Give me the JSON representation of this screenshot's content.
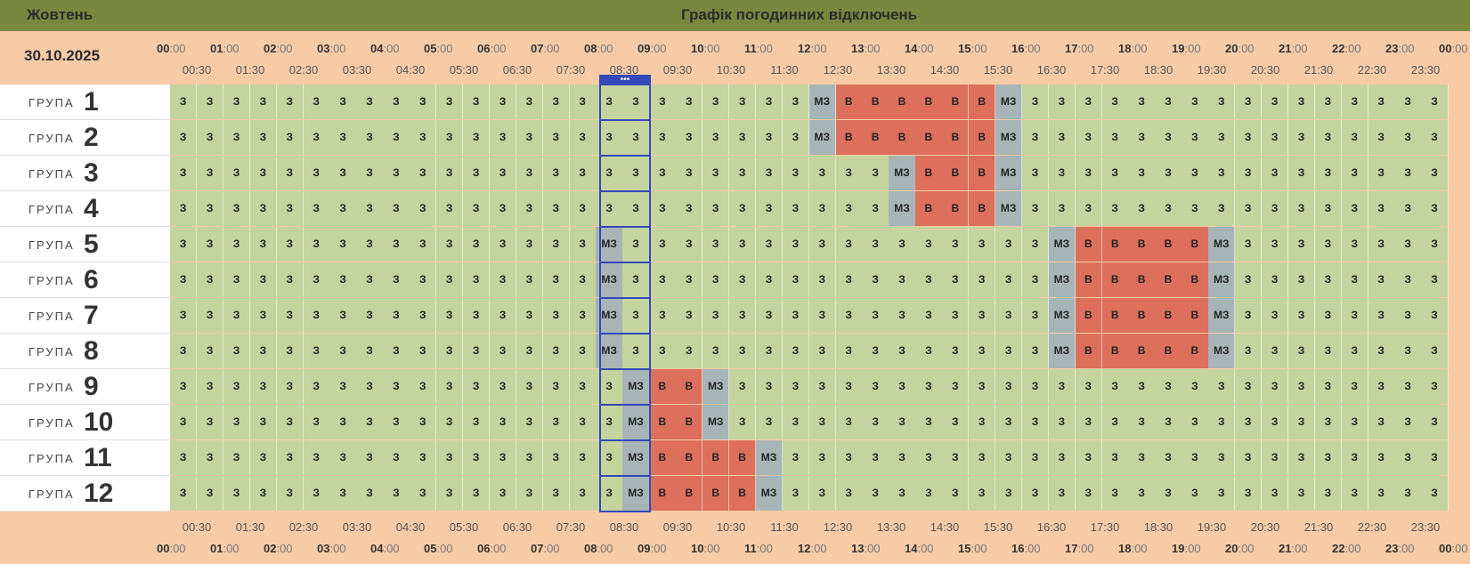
{
  "header": {
    "month": "Жовтень",
    "title": "Графік погодинних відключень"
  },
  "date": "30.10.2025",
  "group_label": "ГРУПА",
  "hours": [
    "00",
    "01",
    "02",
    "03",
    "04",
    "05",
    "06",
    "07",
    "08",
    "09",
    "10",
    "11",
    "12",
    "13",
    "14",
    "15",
    "16",
    "17",
    "18",
    "19",
    "20",
    "21",
    "22",
    "23",
    "00"
  ],
  "minute_suffix": ":00",
  "half_hours": [
    "00:30",
    "01:30",
    "02:30",
    "03:30",
    "04:30",
    "05:30",
    "06:30",
    "07:30",
    "08:30",
    "09:30",
    "10:30",
    "11:30",
    "12:30",
    "13:30",
    "14:30",
    "15:30",
    "16:30",
    "17:30",
    "18:30",
    "19:30",
    "20:30",
    "21:30",
    "22:30",
    "23:30"
  ],
  "now_indicator": "•••",
  "legend_codes": {
    "on": "З",
    "off": "В",
    "maybe": "МЗ"
  },
  "colors": {
    "on": "#c5d49e",
    "off": "#dd6f5d",
    "maybe": "#a8b5b6",
    "header": "#7a873f",
    "background": "#f6cba6",
    "now": "#3548b8"
  },
  "groups": [
    {
      "number": "1",
      "cells": [
        "З",
        "З",
        "З",
        "З",
        "З",
        "З",
        "З",
        "З",
        "З",
        "З",
        "З",
        "З",
        "З",
        "З",
        "З",
        "З",
        "З",
        "З",
        "З",
        "З",
        "З",
        "З",
        "З",
        "З",
        "МЗ",
        "В",
        "В",
        "В",
        "В",
        "В",
        "В",
        "МЗ",
        "З",
        "З",
        "З",
        "З",
        "З",
        "З",
        "З",
        "З",
        "З",
        "З",
        "З",
        "З",
        "З",
        "З",
        "З",
        "З"
      ]
    },
    {
      "number": "2",
      "cells": [
        "З",
        "З",
        "З",
        "З",
        "З",
        "З",
        "З",
        "З",
        "З",
        "З",
        "З",
        "З",
        "З",
        "З",
        "З",
        "З",
        "З",
        "З",
        "З",
        "З",
        "З",
        "З",
        "З",
        "З",
        "МЗ",
        "В",
        "В",
        "В",
        "В",
        "В",
        "В",
        "МЗ",
        "З",
        "З",
        "З",
        "З",
        "З",
        "З",
        "З",
        "З",
        "З",
        "З",
        "З",
        "З",
        "З",
        "З",
        "З",
        "З"
      ]
    },
    {
      "number": "3",
      "cells": [
        "З",
        "З",
        "З",
        "З",
        "З",
        "З",
        "З",
        "З",
        "З",
        "З",
        "З",
        "З",
        "З",
        "З",
        "З",
        "З",
        "З",
        "З",
        "З",
        "З",
        "З",
        "З",
        "З",
        "З",
        "З",
        "З",
        "З",
        "МЗ",
        "В",
        "В",
        "В",
        "МЗ",
        "З",
        "З",
        "З",
        "З",
        "З",
        "З",
        "З",
        "З",
        "З",
        "З",
        "З",
        "З",
        "З",
        "З",
        "З",
        "З"
      ]
    },
    {
      "number": "4",
      "cells": [
        "З",
        "З",
        "З",
        "З",
        "З",
        "З",
        "З",
        "З",
        "З",
        "З",
        "З",
        "З",
        "З",
        "З",
        "З",
        "З",
        "З",
        "З",
        "З",
        "З",
        "З",
        "З",
        "З",
        "З",
        "З",
        "З",
        "З",
        "МЗ",
        "В",
        "В",
        "В",
        "МЗ",
        "З",
        "З",
        "З",
        "З",
        "З",
        "З",
        "З",
        "З",
        "З",
        "З",
        "З",
        "З",
        "З",
        "З",
        "З",
        "З"
      ]
    },
    {
      "number": "5",
      "cells": [
        "З",
        "З",
        "З",
        "З",
        "З",
        "З",
        "З",
        "З",
        "З",
        "З",
        "З",
        "З",
        "З",
        "З",
        "З",
        "З",
        "МЗ",
        "З",
        "З",
        "З",
        "З",
        "З",
        "З",
        "З",
        "З",
        "З",
        "З",
        "З",
        "З",
        "З",
        "З",
        "З",
        "З",
        "МЗ",
        "В",
        "В",
        "В",
        "В",
        "В",
        "МЗ",
        "З",
        "З",
        "З",
        "З",
        "З",
        "З",
        "З",
        "З"
      ]
    },
    {
      "number": "6",
      "cells": [
        "З",
        "З",
        "З",
        "З",
        "З",
        "З",
        "З",
        "З",
        "З",
        "З",
        "З",
        "З",
        "З",
        "З",
        "З",
        "З",
        "МЗ",
        "З",
        "З",
        "З",
        "З",
        "З",
        "З",
        "З",
        "З",
        "З",
        "З",
        "З",
        "З",
        "З",
        "З",
        "З",
        "З",
        "МЗ",
        "В",
        "В",
        "В",
        "В",
        "В",
        "МЗ",
        "З",
        "З",
        "З",
        "З",
        "З",
        "З",
        "З",
        "З"
      ]
    },
    {
      "number": "7",
      "cells": [
        "З",
        "З",
        "З",
        "З",
        "З",
        "З",
        "З",
        "З",
        "З",
        "З",
        "З",
        "З",
        "З",
        "З",
        "З",
        "З",
        "МЗ",
        "З",
        "З",
        "З",
        "З",
        "З",
        "З",
        "З",
        "З",
        "З",
        "З",
        "З",
        "З",
        "З",
        "З",
        "З",
        "З",
        "МЗ",
        "В",
        "В",
        "В",
        "В",
        "В",
        "МЗ",
        "З",
        "З",
        "З",
        "З",
        "З",
        "З",
        "З",
        "З"
      ]
    },
    {
      "number": "8",
      "cells": [
        "З",
        "З",
        "З",
        "З",
        "З",
        "З",
        "З",
        "З",
        "З",
        "З",
        "З",
        "З",
        "З",
        "З",
        "З",
        "З",
        "МЗ",
        "З",
        "З",
        "З",
        "З",
        "З",
        "З",
        "З",
        "З",
        "З",
        "З",
        "З",
        "З",
        "З",
        "З",
        "З",
        "З",
        "МЗ",
        "В",
        "В",
        "В",
        "В",
        "В",
        "МЗ",
        "З",
        "З",
        "З",
        "З",
        "З",
        "З",
        "З",
        "З"
      ]
    },
    {
      "number": "9",
      "cells": [
        "З",
        "З",
        "З",
        "З",
        "З",
        "З",
        "З",
        "З",
        "З",
        "З",
        "З",
        "З",
        "З",
        "З",
        "З",
        "З",
        "З",
        "МЗ",
        "В",
        "В",
        "МЗ",
        "З",
        "З",
        "З",
        "З",
        "З",
        "З",
        "З",
        "З",
        "З",
        "З",
        "З",
        "З",
        "З",
        "З",
        "З",
        "З",
        "З",
        "З",
        "З",
        "З",
        "З",
        "З",
        "З",
        "З",
        "З",
        "З",
        "З"
      ]
    },
    {
      "number": "10",
      "cells": [
        "З",
        "З",
        "З",
        "З",
        "З",
        "З",
        "З",
        "З",
        "З",
        "З",
        "З",
        "З",
        "З",
        "З",
        "З",
        "З",
        "З",
        "МЗ",
        "В",
        "В",
        "МЗ",
        "З",
        "З",
        "З",
        "З",
        "З",
        "З",
        "З",
        "З",
        "З",
        "З",
        "З",
        "З",
        "З",
        "З",
        "З",
        "З",
        "З",
        "З",
        "З",
        "З",
        "З",
        "З",
        "З",
        "З",
        "З",
        "З",
        "З"
      ]
    },
    {
      "number": "11",
      "cells": [
        "З",
        "З",
        "З",
        "З",
        "З",
        "З",
        "З",
        "З",
        "З",
        "З",
        "З",
        "З",
        "З",
        "З",
        "З",
        "З",
        "З",
        "МЗ",
        "В",
        "В",
        "В",
        "В",
        "МЗ",
        "З",
        "З",
        "З",
        "З",
        "З",
        "З",
        "З",
        "З",
        "З",
        "З",
        "З",
        "З",
        "З",
        "З",
        "З",
        "З",
        "З",
        "З",
        "З",
        "З",
        "З",
        "З",
        "З",
        "З",
        "З"
      ]
    },
    {
      "number": "12",
      "cells": [
        "З",
        "З",
        "З",
        "З",
        "З",
        "З",
        "З",
        "З",
        "З",
        "З",
        "З",
        "З",
        "З",
        "З",
        "З",
        "З",
        "З",
        "МЗ",
        "В",
        "В",
        "В",
        "В",
        "МЗ",
        "З",
        "З",
        "З",
        "З",
        "З",
        "З",
        "З",
        "З",
        "З",
        "З",
        "З",
        "З",
        "З",
        "З",
        "З",
        "З",
        "З",
        "З",
        "З",
        "З",
        "З",
        "З",
        "З",
        "З",
        "З"
      ]
    }
  ]
}
